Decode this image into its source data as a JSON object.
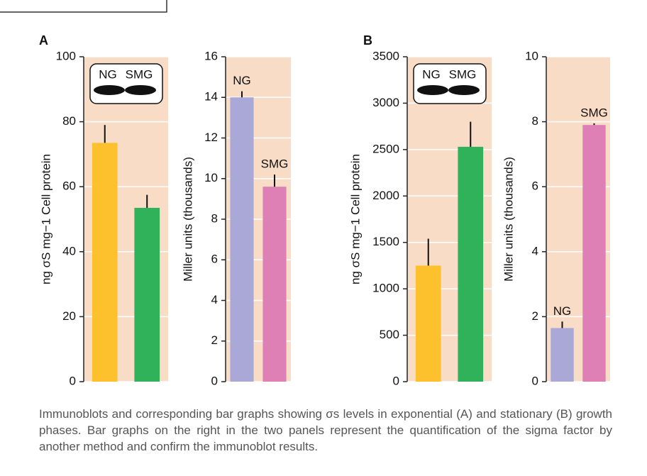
{
  "panels": [
    "A",
    "B"
  ],
  "chart_data": [
    {
      "type": "bar",
      "y_label": "ng σS mg−1 Cell protein",
      "categories": [
        "NG",
        "SMG"
      ],
      "values": [
        73.5,
        53.5
      ],
      "errors": [
        5.5,
        4
      ],
      "colors": [
        "#fdc12e",
        "#30b25a"
      ],
      "ylim": [
        0,
        100
      ],
      "yticks": [
        0,
        20,
        40,
        60,
        80,
        100
      ],
      "grid": true,
      "blot_inset": true
    },
    {
      "type": "bar",
      "y_label": "Miller units (thousands)",
      "categories": [
        "NG",
        "SMG"
      ],
      "values": [
        14,
        9.6
      ],
      "errors": [
        0.3,
        0.6
      ],
      "colors": [
        "#a9a8d6",
        "#de7fb6"
      ],
      "ylim": [
        0,
        16
      ],
      "yticks": [
        0,
        2,
        4,
        6,
        8,
        10,
        12,
        14,
        16
      ],
      "grid": true,
      "blot_inset": false
    },
    {
      "type": "bar",
      "y_label": "ng σS mg−1 Cell protein",
      "categories": [
        "NG",
        "SMG"
      ],
      "values": [
        1250,
        2530
      ],
      "errors": [
        290,
        270
      ],
      "colors": [
        "#fdc12e",
        "#30b25a"
      ],
      "ylim": [
        0,
        3500
      ],
      "yticks": [
        0,
        500,
        1000,
        1500,
        2000,
        2500,
        3000,
        3500
      ],
      "grid": true,
      "blot_inset": true
    },
    {
      "type": "bar",
      "y_label": "Miller units (thousands)",
      "categories": [
        "NG",
        "SMG"
      ],
      "values": [
        1.65,
        7.9
      ],
      "errors": [
        0.2,
        0.05
      ],
      "colors": [
        "#a9a8d6",
        "#de7fb6"
      ],
      "ylim": [
        0,
        10
      ],
      "yticks": [
        0,
        2,
        4,
        6,
        8,
        10
      ],
      "grid": true,
      "blot_inset": false
    }
  ],
  "caption": "Immunoblots and corresponding bar graphs showing σs levels in exponential (A) and stationary (B) growth phases. Bar graphs on the right in the two panels represent the quantification of the sigma factor by another method and confirm the immunoblot results."
}
